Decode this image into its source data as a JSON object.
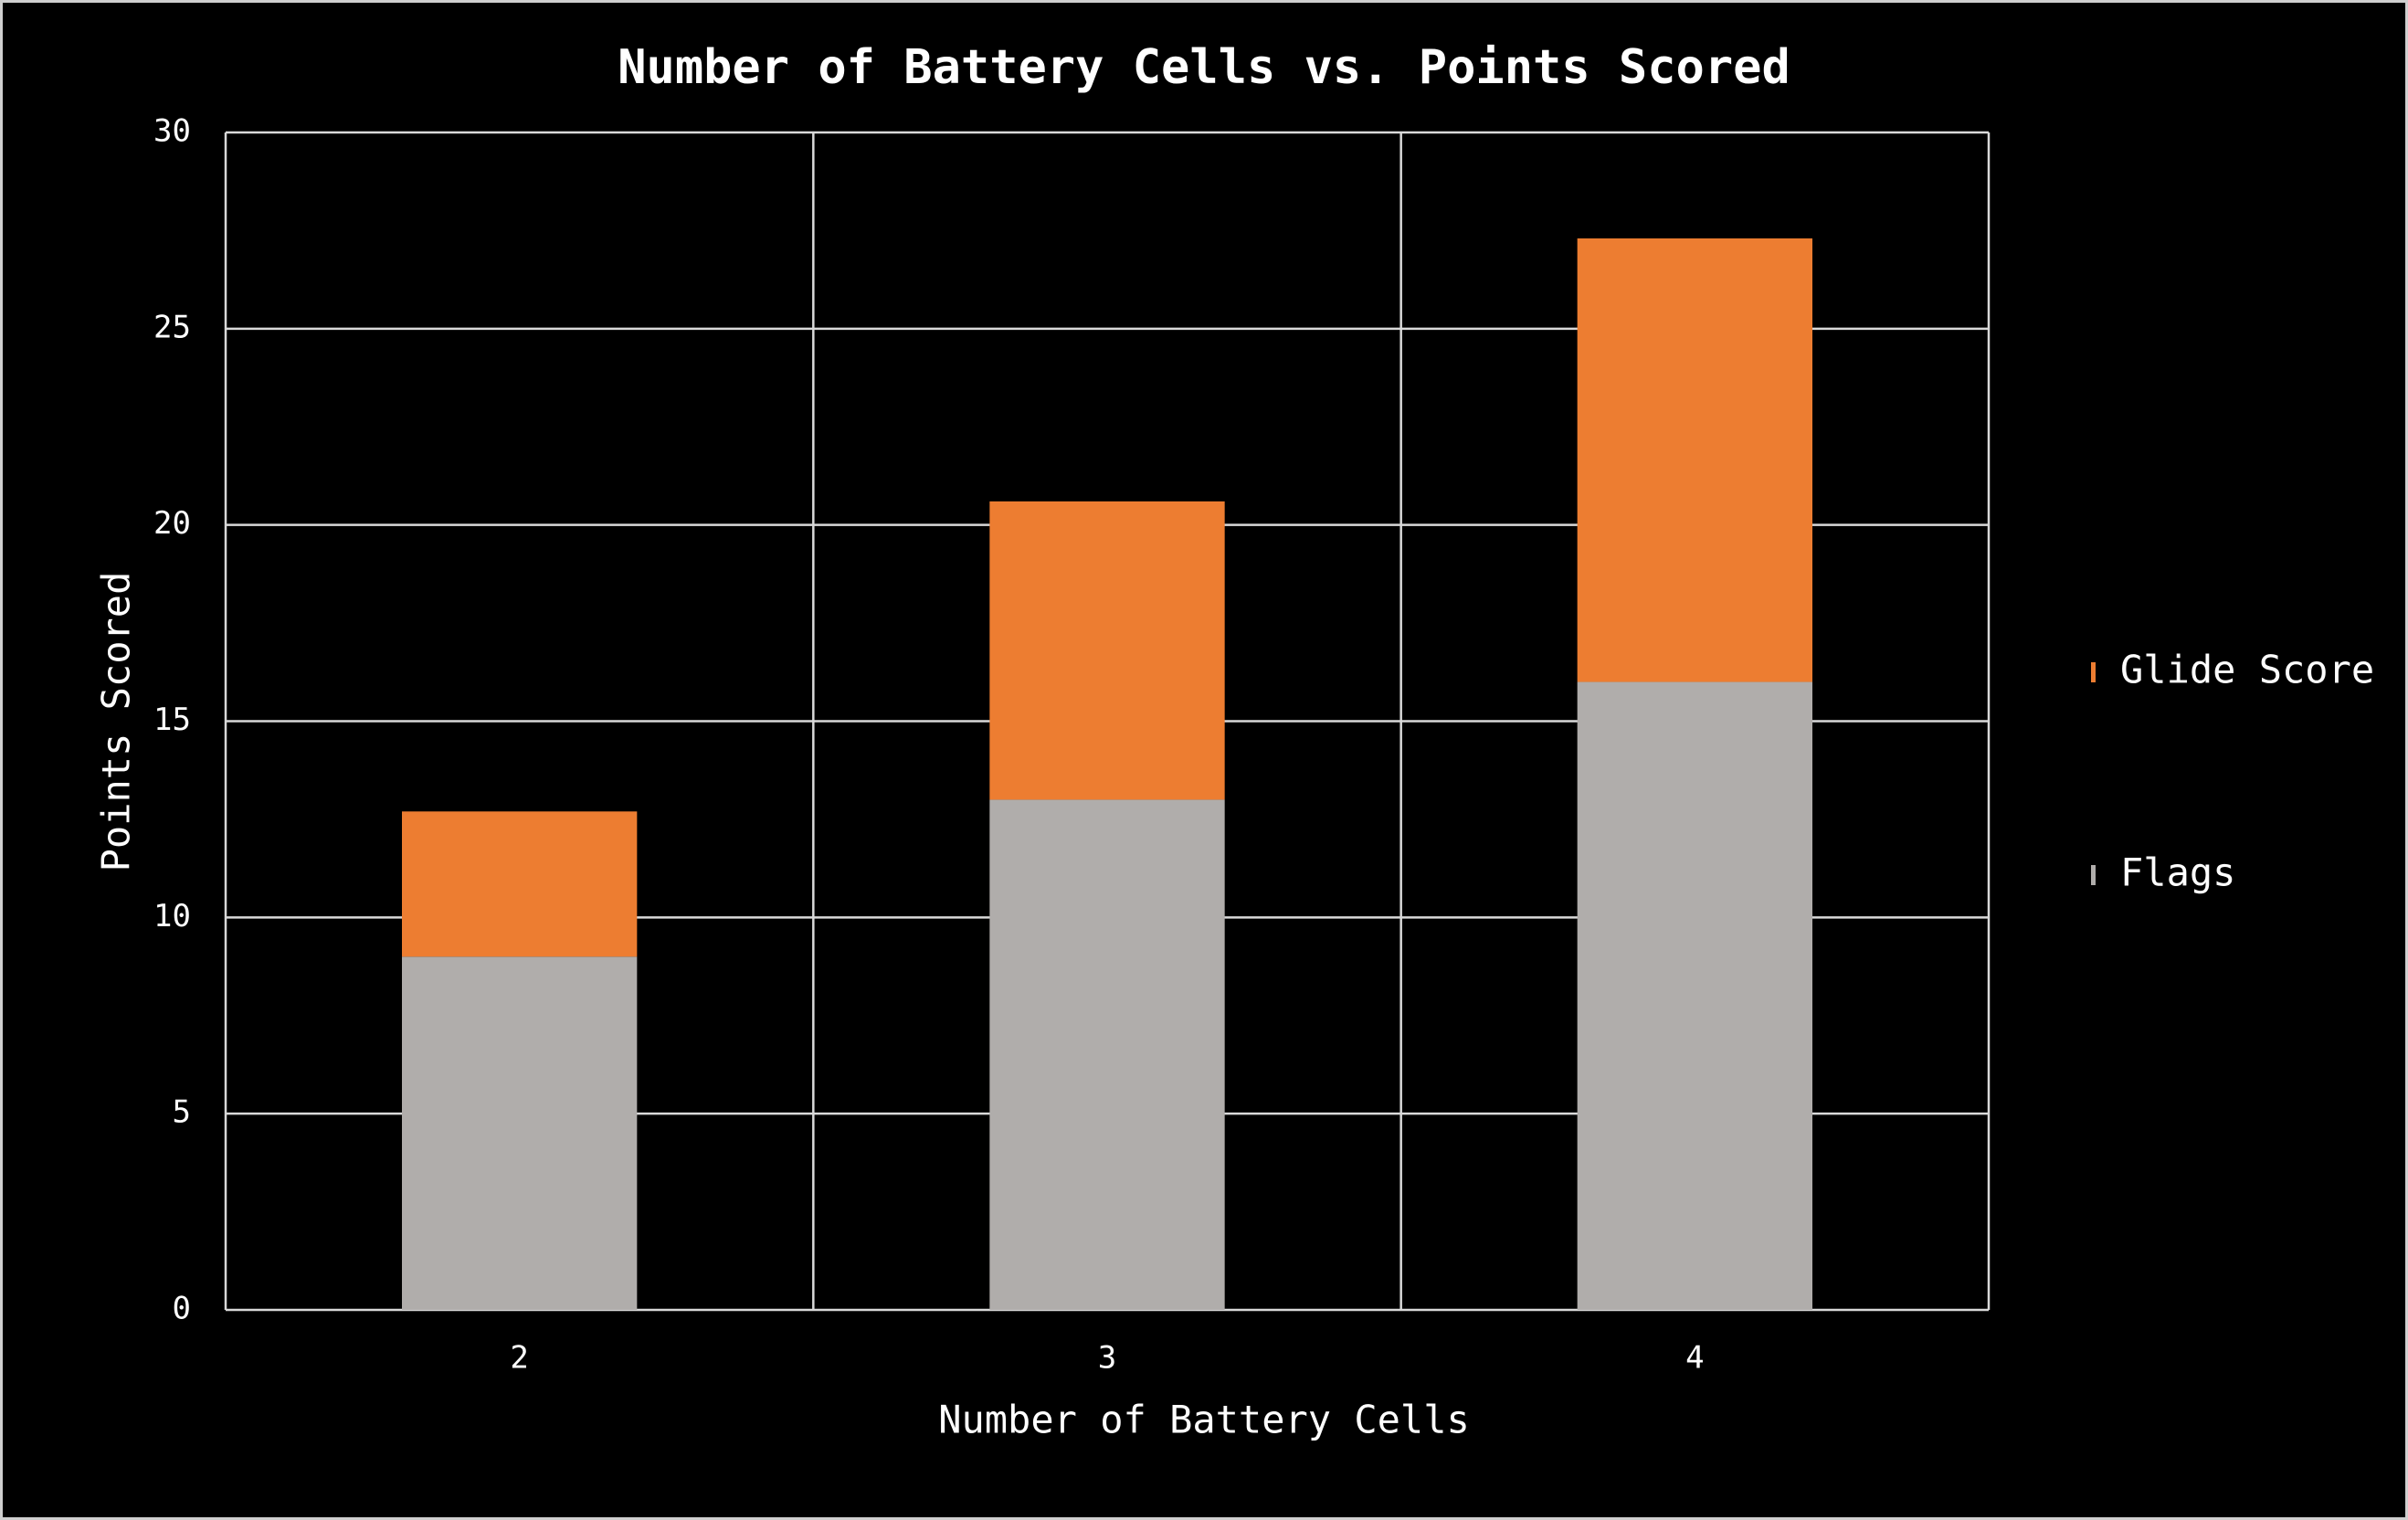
{
  "chart_data": {
    "type": "stacked-bar",
    "title": "Number of Battery Cells vs. Points Scored",
    "x_label": "Number of Battery Cells",
    "y_label": "Points Scored",
    "categories": [
      "2",
      "3",
      "4"
    ],
    "series": [
      {
        "name": "Flags",
        "color": "#b0adab",
        "values": [
          9,
          13,
          16
        ]
      },
      {
        "name": "Glide Score",
        "color": "#ed7d31",
        "values": [
          3.7,
          7.6,
          11.3
        ]
      }
    ],
    "ylim": [
      0,
      30
    ],
    "yticks": [
      0,
      5,
      10,
      15,
      20,
      25,
      30
    ],
    "grid": true,
    "legend": "right"
  }
}
